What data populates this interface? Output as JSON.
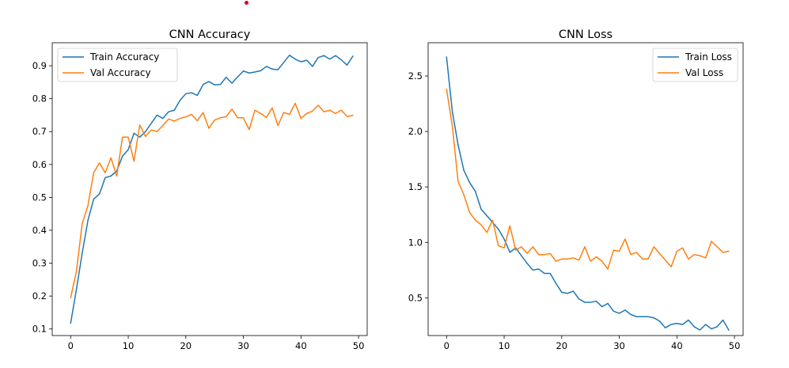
{
  "chart_data": [
    {
      "type": "line",
      "title": "CNN Accuracy",
      "xlabel": "",
      "ylabel": "",
      "xlim": [
        -3.2,
        51.5
      ],
      "ylim": [
        0.08,
        0.97
      ],
      "xticks": [
        0,
        10,
        20,
        30,
        40,
        50
      ],
      "yticks": [
        0.1,
        0.2,
        0.3,
        0.4,
        0.5,
        0.6,
        0.7,
        0.8,
        0.9
      ],
      "legend_position": "top-left",
      "series": [
        {
          "name": "Train Accuracy",
          "color": "#1f77b4",
          "values": [
            0.118,
            0.22,
            0.33,
            0.43,
            0.495,
            0.51,
            0.56,
            0.565,
            0.58,
            0.625,
            0.645,
            0.695,
            0.683,
            0.7,
            0.725,
            0.75,
            0.74,
            0.76,
            0.765,
            0.795,
            0.815,
            0.818,
            0.81,
            0.843,
            0.852,
            0.842,
            0.843,
            0.865,
            0.847,
            0.866,
            0.884,
            0.878,
            0.881,
            0.885,
            0.898,
            0.89,
            0.888,
            0.91,
            0.932,
            0.92,
            0.912,
            0.917,
            0.898,
            0.925,
            0.931,
            0.92,
            0.931,
            0.918,
            0.902,
            0.929
          ]
        },
        {
          "name": "Val Accuracy",
          "color": "#ff7f0e",
          "values": [
            0.195,
            0.275,
            0.42,
            0.475,
            0.575,
            0.605,
            0.575,
            0.62,
            0.565,
            0.683,
            0.683,
            0.61,
            0.72,
            0.685,
            0.705,
            0.7,
            0.718,
            0.738,
            0.732,
            0.74,
            0.745,
            0.752,
            0.733,
            0.758,
            0.71,
            0.735,
            0.742,
            0.745,
            0.768,
            0.742,
            0.742,
            0.706,
            0.765,
            0.755,
            0.743,
            0.772,
            0.718,
            0.758,
            0.752,
            0.786,
            0.74,
            0.755,
            0.762,
            0.78,
            0.76,
            0.765,
            0.755,
            0.765,
            0.746,
            0.749
          ]
        }
      ]
    },
    {
      "type": "line",
      "title": "CNN Loss",
      "xlabel": "",
      "ylabel": "",
      "xlim": [
        -3.2,
        51.5
      ],
      "ylim": [
        0.16,
        2.8
      ],
      "xticks": [
        0,
        10,
        20,
        30,
        40,
        50
      ],
      "yticks": [
        0.5,
        1.0,
        1.5,
        2.0,
        2.5
      ],
      "ytick_labels": [
        "0.5",
        "1.0",
        "1.5",
        "2.0",
        "2.5"
      ],
      "legend_position": "top-right",
      "series": [
        {
          "name": "Train Loss",
          "color": "#1f77b4",
          "values": [
            2.67,
            2.18,
            1.88,
            1.65,
            1.54,
            1.46,
            1.3,
            1.24,
            1.18,
            1.12,
            1.03,
            0.91,
            0.95,
            0.88,
            0.81,
            0.75,
            0.76,
            0.72,
            0.72,
            0.63,
            0.55,
            0.54,
            0.56,
            0.49,
            0.46,
            0.46,
            0.47,
            0.42,
            0.45,
            0.38,
            0.36,
            0.39,
            0.35,
            0.33,
            0.33,
            0.33,
            0.32,
            0.29,
            0.23,
            0.26,
            0.27,
            0.26,
            0.3,
            0.24,
            0.21,
            0.26,
            0.22,
            0.24,
            0.3,
            0.21
          ]
        },
        {
          "name": "Val Loss",
          "color": "#ff7f0e",
          "values": [
            2.38,
            2.05,
            1.55,
            1.43,
            1.27,
            1.2,
            1.16,
            1.09,
            1.2,
            0.97,
            0.95,
            1.15,
            0.93,
            0.96,
            0.9,
            0.96,
            0.89,
            0.89,
            0.9,
            0.83,
            0.85,
            0.85,
            0.86,
            0.84,
            0.96,
            0.83,
            0.87,
            0.83,
            0.76,
            0.93,
            0.92,
            1.03,
            0.89,
            0.91,
            0.85,
            0.85,
            0.96,
            0.9,
            0.84,
            0.78,
            0.92,
            0.95,
            0.85,
            0.89,
            0.88,
            0.86,
            1.01,
            0.96,
            0.91,
            0.92
          ]
        }
      ]
    }
  ]
}
